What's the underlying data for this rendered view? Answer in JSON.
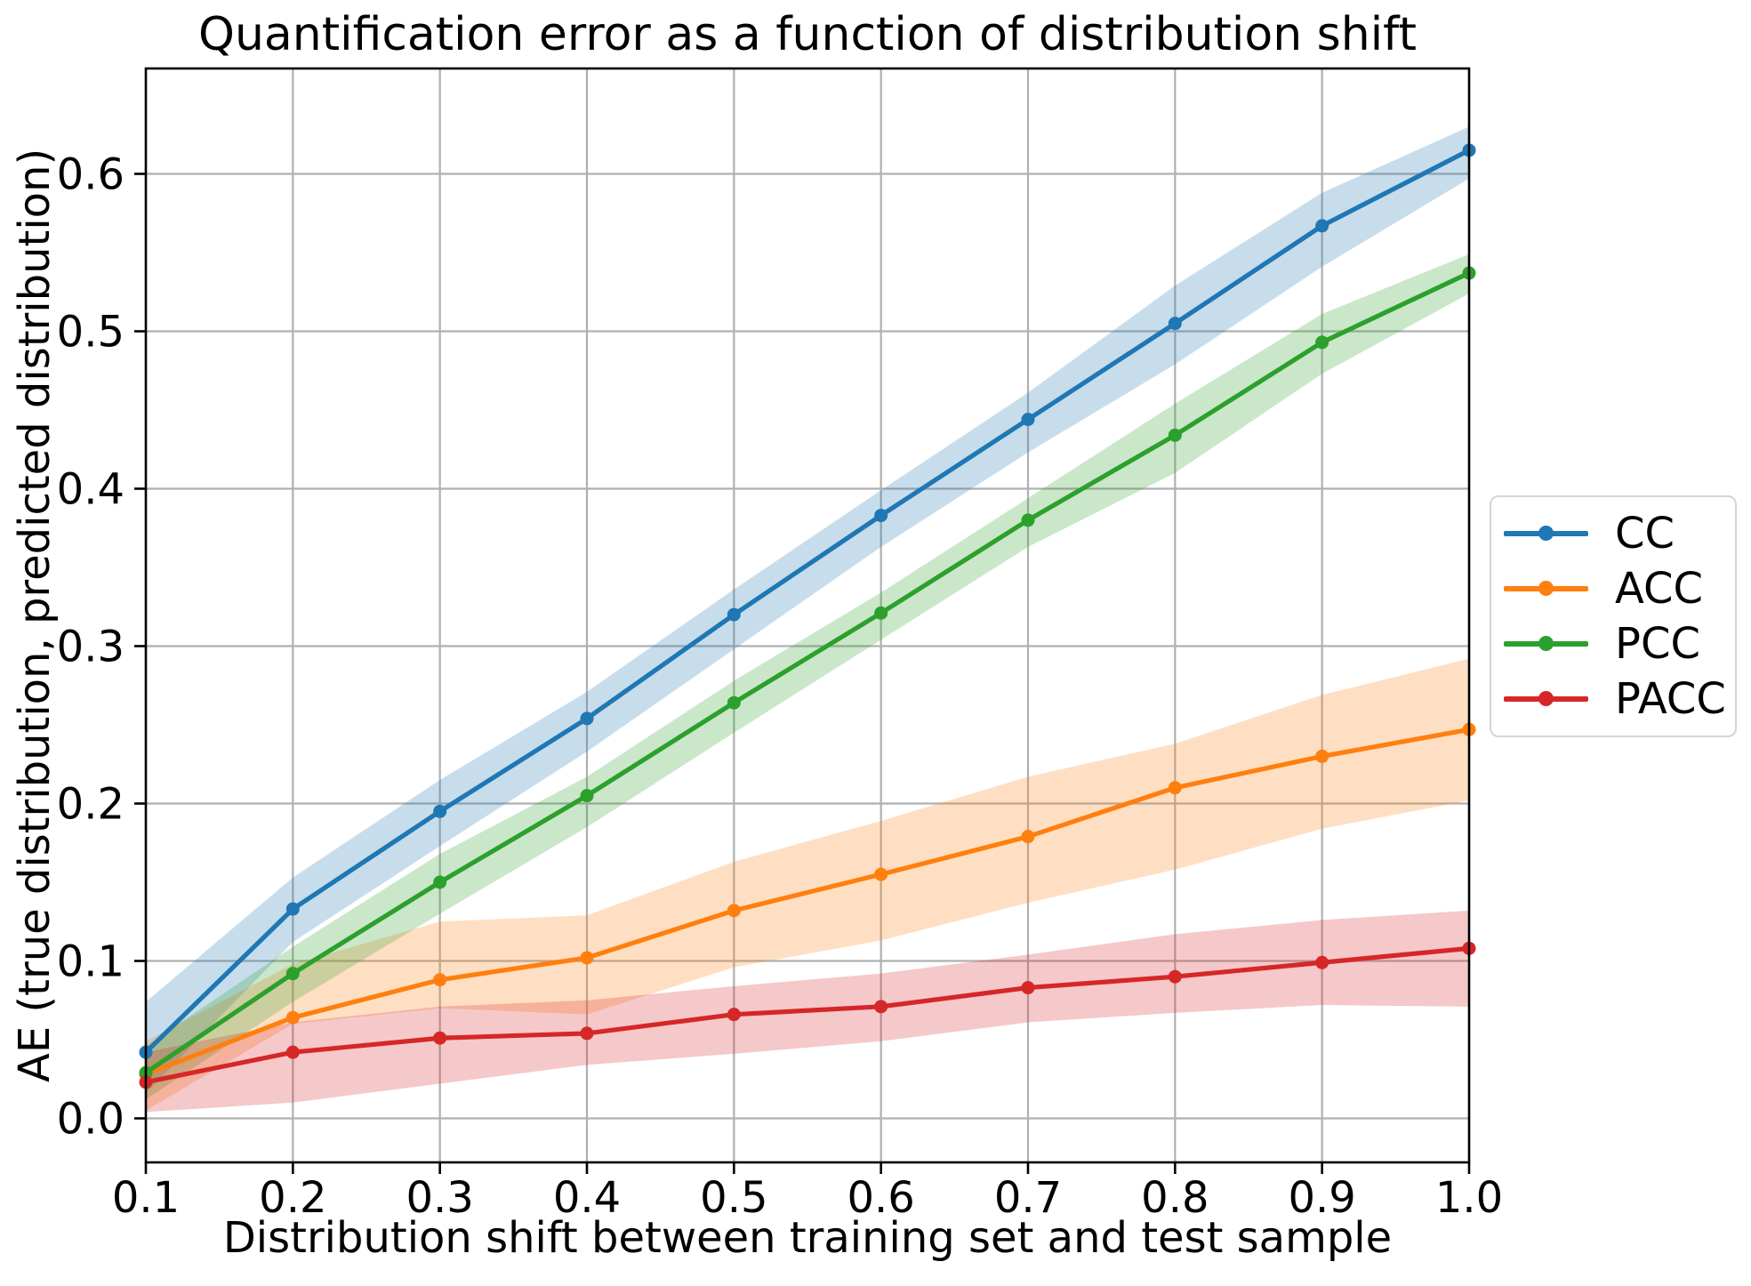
{
  "title": "Quantification error as a function of distribution shift",
  "x_axis": {
    "label": "Distribution shift between training set and test sample",
    "tick_labels": [
      "0.1",
      "0.2",
      "0.3",
      "0.4",
      "0.5",
      "0.6",
      "0.7",
      "0.8",
      "0.9",
      "1.0"
    ],
    "tick_values": [
      0.1,
      0.2,
      0.3,
      0.4,
      0.5,
      0.6,
      0.7,
      0.8,
      0.9,
      1.0
    ]
  },
  "y_axis": {
    "label": "AE (true distribution, predicted distribution)",
    "tick_labels": [
      "0.0",
      "0.1",
      "0.2",
      "0.3",
      "0.4",
      "0.5",
      "0.6"
    ],
    "tick_values": [
      0.0,
      0.1,
      0.2,
      0.3,
      0.4,
      0.5,
      0.6
    ]
  },
  "legend": {
    "entries": [
      {
        "label": "CC",
        "color": "#1f77b4"
      },
      {
        "label": "ACC",
        "color": "#ff7f0e"
      },
      {
        "label": "PCC",
        "color": "#2ca02c"
      },
      {
        "label": "PACC",
        "color": "#d62728"
      }
    ]
  },
  "style_colors": {
    "grid": "#b0b0b0",
    "spine": "#000000",
    "background": "#ffffff",
    "legend_border": "#d5d5d5"
  },
  "chart_data": {
    "type": "line",
    "title": "Quantification error as a function of distribution shift",
    "xlabel": "Distribution shift between training set and test sample",
    "ylabel": "AE (true distribution, predicted distribution)",
    "x": [
      0.1,
      0.2,
      0.3,
      0.4,
      0.5,
      0.6,
      0.7,
      0.8,
      0.9,
      1.0
    ],
    "xlim": [
      0.1,
      1.0
    ],
    "ylim": [
      -0.028,
      0.667
    ],
    "grid": true,
    "legend_position": "outside right",
    "band_alpha": 0.25,
    "series": [
      {
        "name": "CC",
        "color": "#1f77b4",
        "values": [
          0.042,
          0.133,
          0.195,
          0.254,
          0.32,
          0.383,
          0.444,
          0.505,
          0.567,
          0.615
        ],
        "band_upper": [
          0.074,
          0.153,
          0.215,
          0.271,
          0.336,
          0.399,
          0.461,
          0.529,
          0.588,
          0.63
        ],
        "band_lower": [
          0.016,
          0.112,
          0.173,
          0.233,
          0.298,
          0.363,
          0.423,
          0.479,
          0.541,
          0.597
        ]
      },
      {
        "name": "ACC",
        "color": "#ff7f0e",
        "values": [
          0.028,
          0.064,
          0.088,
          0.102,
          0.132,
          0.155,
          0.179,
          0.21,
          0.23,
          0.247
        ],
        "band_upper": [
          0.049,
          0.098,
          0.125,
          0.129,
          0.163,
          0.189,
          0.217,
          0.238,
          0.269,
          0.292
        ],
        "band_lower": [
          0.005,
          0.06,
          0.07,
          0.066,
          0.096,
          0.113,
          0.137,
          0.158,
          0.184,
          0.202
        ]
      },
      {
        "name": "PCC",
        "color": "#2ca02c",
        "values": [
          0.029,
          0.092,
          0.15,
          0.205,
          0.264,
          0.321,
          0.38,
          0.434,
          0.493,
          0.537
        ],
        "band_upper": [
          0.046,
          0.109,
          0.168,
          0.217,
          0.278,
          0.334,
          0.394,
          0.454,
          0.511,
          0.549
        ],
        "band_lower": [
          0.012,
          0.074,
          0.13,
          0.185,
          0.245,
          0.304,
          0.363,
          0.41,
          0.473,
          0.524
        ]
      },
      {
        "name": "PACC",
        "color": "#d62728",
        "values": [
          0.023,
          0.042,
          0.051,
          0.054,
          0.066,
          0.071,
          0.083,
          0.09,
          0.099,
          0.108
        ],
        "band_upper": [
          0.042,
          0.061,
          0.071,
          0.075,
          0.084,
          0.092,
          0.104,
          0.117,
          0.126,
          0.132
        ],
        "band_lower": [
          0.004,
          0.01,
          0.022,
          0.034,
          0.041,
          0.049,
          0.061,
          0.067,
          0.072,
          0.071
        ]
      }
    ]
  }
}
